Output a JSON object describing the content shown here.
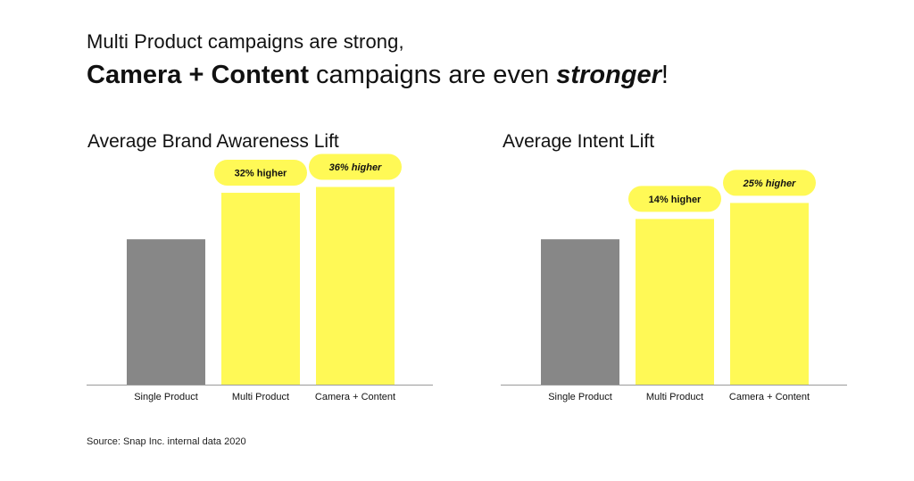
{
  "headline": {
    "line1": "Multi Product campaigns are strong,",
    "line2_bold": "Camera + Content",
    "line2_middle": " campaigns are even ",
    "line2_emph": "stronger",
    "line2_end": "!"
  },
  "colors": {
    "gray": "#878787",
    "yellow": "#FFF956",
    "axis": "#9a9a9a"
  },
  "chart_data": [
    {
      "type": "bar",
      "title": "Average Brand Awareness Lift",
      "categories": [
        "Single Product",
        "Multi Product",
        "Camera + Content"
      ],
      "values": [
        100,
        132,
        136
      ],
      "bar_colors": [
        "gray",
        "yellow",
        "yellow"
      ],
      "labels": [
        "",
        "32% higher",
        "36% higher"
      ],
      "label_italic": [
        false,
        false,
        true
      ],
      "ylim": [
        0,
        140
      ],
      "grid": false,
      "legend": "none"
    },
    {
      "type": "bar",
      "title": "Average Intent Lift",
      "categories": [
        "Single Product",
        "Multi Product",
        "Camera + Content"
      ],
      "values": [
        100,
        114,
        125
      ],
      "bar_colors": [
        "gray",
        "yellow",
        "yellow"
      ],
      "labels": [
        "",
        "14% higher",
        "25% higher"
      ],
      "label_italic": [
        false,
        false,
        true
      ],
      "ylim": [
        0,
        140
      ],
      "grid": false,
      "legend": "none"
    }
  ],
  "source": "Source: Snap Inc. internal data 2020"
}
